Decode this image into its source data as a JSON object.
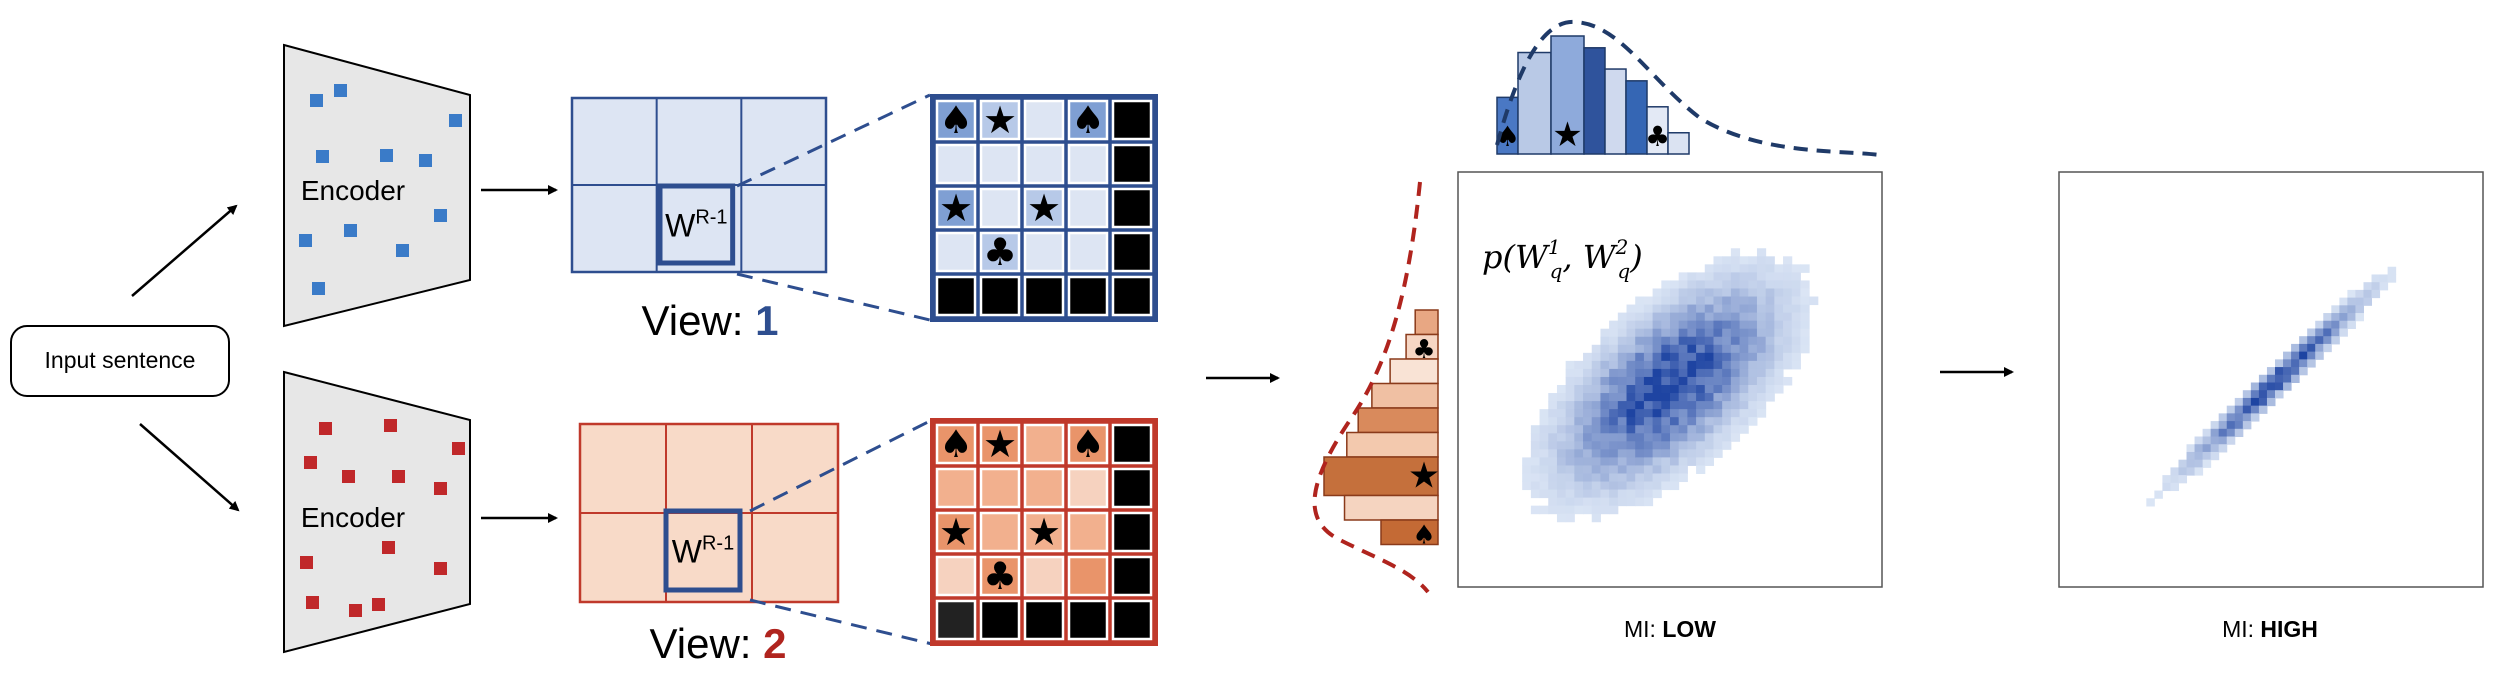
{
  "input": {
    "label": "Input sentence"
  },
  "encoders": [
    {
      "label": "Encoder",
      "color": "#3a7bc8"
    },
    {
      "label": "Encoder",
      "color": "#c0282a"
    }
  ],
  "views": [
    {
      "prefix": "View: ",
      "number": "1",
      "number_color": "#2e4e8f",
      "grid_fill": "#dde5f3",
      "grid_stroke": "#2e4e8f"
    },
    {
      "prefix": "View: ",
      "number": "2",
      "number_color": "#b0241e",
      "grid_fill": "#f8dac8",
      "grid_stroke": "#c0392b"
    }
  ],
  "cell_label": {
    "base": "W",
    "sup": "R-1"
  },
  "symbols": {
    "spade": "♠",
    "club": "♣",
    "star": "★"
  },
  "zoom_grid_1": {
    "rows": [
      [
        "spade",
        "star",
        "",
        "spade",
        ""
      ],
      [
        "",
        "",
        "",
        "",
        ""
      ],
      [
        "star",
        "",
        "star",
        "",
        ""
      ],
      [
        "",
        "club",
        "",
        "",
        ""
      ],
      [
        "",
        "",
        "",
        "",
        ""
      ]
    ],
    "shades": [
      [
        2,
        1,
        0,
        2,
        9
      ],
      [
        0,
        0,
        0,
        0,
        9
      ],
      [
        2,
        0,
        1,
        0,
        9
      ],
      [
        0,
        1,
        0,
        0,
        9
      ],
      [
        9,
        9,
        9,
        9,
        9
      ]
    ],
    "palette": [
      "#dde5f3",
      "#b7c9e8",
      "#7f9fd3"
    ],
    "stroke": "#2e4e8f"
  },
  "zoom_grid_2": {
    "rows": [
      [
        "spade",
        "star",
        "",
        "spade",
        ""
      ],
      [
        "",
        "",
        "",
        "",
        ""
      ],
      [
        "star",
        "",
        "star",
        "",
        ""
      ],
      [
        "",
        "club",
        "",
        "",
        ""
      ],
      [
        "",
        "",
        "",
        "",
        ""
      ]
    ],
    "shades": [
      [
        2,
        2,
        1,
        2,
        9
      ],
      [
        1,
        1,
        1,
        0,
        9
      ],
      [
        2,
        1,
        1,
        1,
        9
      ],
      [
        0,
        2,
        0,
        2,
        9
      ],
      [
        8,
        9,
        9,
        9,
        9
      ]
    ],
    "palette": [
      "#f6d2bf",
      "#f2b08e",
      "#e9946a"
    ],
    "stroke": "#c0392b"
  },
  "marginal_top": {
    "bars": [
      {
        "value": 0.48,
        "color": "#4a78c4",
        "symbol": "spade"
      },
      {
        "value": 0.86,
        "color": "#b9c9e6",
        "symbol": ""
      },
      {
        "value": 1.0,
        "color": "#8eaadb",
        "symbol": "star"
      },
      {
        "value": 0.9,
        "color": "#2f539c",
        "symbol": ""
      },
      {
        "value": 0.72,
        "color": "#cfd9ee",
        "symbol": ""
      },
      {
        "value": 0.62,
        "color": "#3566b4",
        "symbol": ""
      },
      {
        "value": 0.4,
        "color": "#e3e9f5",
        "symbol": "club"
      },
      {
        "value": 0.18,
        "color": "#dbe3f2",
        "symbol": ""
      }
    ],
    "curve_color": "#1f3a68"
  },
  "marginal_left": {
    "bars": [
      {
        "value": 0.2,
        "color": "#e8a783",
        "symbol": ""
      },
      {
        "value": 0.28,
        "color": "#f6d6c4",
        "symbol": "club"
      },
      {
        "value": 0.42,
        "color": "#f9e3d5",
        "symbol": ""
      },
      {
        "value": 0.58,
        "color": "#f0c0a3",
        "symbol": ""
      },
      {
        "value": 0.7,
        "color": "#d98a5c",
        "symbol": ""
      },
      {
        "value": 0.8,
        "color": "#f3c9ae",
        "symbol": ""
      },
      {
        "value": 1.0,
        "color": "#c5703c",
        "symbol": "star"
      },
      {
        "value": 0.82,
        "color": "#f5d4c0",
        "symbol": ""
      },
      {
        "value": 0.5,
        "color": "#c46a35",
        "symbol": "spade"
      }
    ],
    "curve_color": "#b0241e"
  },
  "plot_low": {
    "formula": "p(W_q^1, W_q^2)",
    "caption_prefix": "MI: ",
    "caption_value": "LOW"
  },
  "plot_high": {
    "caption_prefix": "MI: ",
    "caption_value": "HIGH"
  }
}
